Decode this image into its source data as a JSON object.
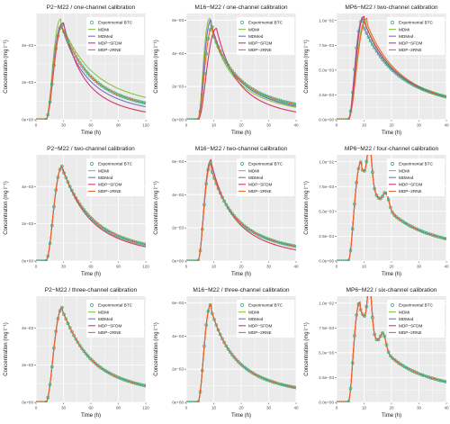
{
  "figure": {
    "panel_background": "#ebebeb",
    "grid_color": "#ffffff",
    "series_styles": [
      {
        "name": "Experimental BTC",
        "color": "#3aa67a",
        "kind": "points"
      },
      {
        "name": "MDMi",
        "color": "#8cc63f",
        "kind": "line"
      },
      {
        "name": "MDMed",
        "color": "#7b6fc4",
        "kind": "line"
      },
      {
        "name": "MDP−SFDM",
        "color": "#d6336c",
        "kind": "line"
      },
      {
        "name": "MDP−2RNE",
        "color": "#f26522",
        "kind": "line"
      }
    ]
  },
  "chart_data": [
    {
      "type": "line",
      "title": "P2−M22 / one-channel calibration",
      "xlabel": "Time (h)",
      "ylabel": "Concentration (mg l⁻¹)",
      "xlim": [
        0,
        120
      ],
      "ylim": [
        0,
        0.0057
      ],
      "xticks": [
        0,
        30,
        60,
        90,
        120
      ],
      "yticks": [
        0,
        0.002,
        0.004
      ],
      "ytick_labels": [
        "0e+00",
        "2e−03",
        "4e−03"
      ],
      "legend": "top-right",
      "curves": [
        {
          "peak": 0.0051,
          "t0": 10,
          "tp": 29,
          "tail": 0.0002,
          "sh": 0.045,
          "sh2": 0.6
        },
        {
          "peak": 0.0054,
          "t0": 10,
          "tp": 27,
          "tail": 0.0003,
          "sh": 0.04,
          "sh2": 0.55
        },
        {
          "peak": 0.0051,
          "t0": 10,
          "tp": 28,
          "tail": 0.0001,
          "sh": 0.05,
          "sh2": 0.6
        },
        {
          "peak": 0.0052,
          "t0": 10,
          "tp": 30,
          "tail": 0.0,
          "sh": 0.06,
          "sh2": 0.65
        },
        {
          "peak": 0.0051,
          "t0": 10,
          "tp": 29,
          "tail": 0.0002,
          "sh": 0.045,
          "sh2": 0.6
        }
      ]
    },
    {
      "type": "line",
      "title": "M16−M22 / one-channel calibration",
      "xlabel": "Time (h)",
      "ylabel": "Concentration (mg l⁻¹)",
      "xlim": [
        0,
        40
      ],
      "ylim": [
        0,
        0.0064
      ],
      "xticks": [
        0,
        10,
        20,
        30,
        40
      ],
      "yticks": [
        0,
        0.002,
        0.004,
        0.006
      ],
      "ytick_labels": [
        "0e+00",
        "2e−03",
        "4e−03",
        "6e−03"
      ],
      "legend": "top-right",
      "curves": [
        {
          "peak": 0.0056,
          "t0": 4,
          "tp": 9.5,
          "tail": 0.0003,
          "sh": 0.15,
          "sh2": 0.6
        },
        {
          "peak": 0.0061,
          "t0": 4,
          "tp": 8.5,
          "tail": 0.0002,
          "sh": 0.17,
          "sh2": 0.6
        },
        {
          "peak": 0.006,
          "t0": 4,
          "tp": 9.0,
          "tail": 0.0002,
          "sh": 0.16,
          "sh2": 0.6
        },
        {
          "peak": 0.0055,
          "t0": 4,
          "tp": 11.0,
          "tail": 0.0,
          "sh": 0.18,
          "sh2": 0.65
        },
        {
          "peak": 0.0056,
          "t0": 4,
          "tp": 9.5,
          "tail": 0.0003,
          "sh": 0.15,
          "sh2": 0.6
        }
      ]
    },
    {
      "type": "line",
      "title": "MP6−M22 / two-channel calibration",
      "xlabel": "Time (h)",
      "ylabel": "Concentration (mg l⁻¹)",
      "xlim": [
        0,
        40
      ],
      "ylim": [
        0,
        0.0107
      ],
      "xticks": [
        0,
        10,
        20,
        30,
        40
      ],
      "yticks": [
        0,
        0.0025,
        0.005,
        0.0075,
        0.01
      ],
      "ytick_labels": [
        "0.0e+00",
        "2.5e−03",
        "5.0e−03",
        "7.5e−03",
        "1.0e−02"
      ],
      "legend": "top-right",
      "curves": [
        {
          "peak": 0.0102,
          "t0": 4,
          "tp": 9.5,
          "tail": 0.0006,
          "sh": 0.12,
          "sh2": 0.55
        },
        {
          "peak": 0.01,
          "t0": 4,
          "tp": 10.5,
          "tail": 0.0004,
          "sh": 0.12,
          "sh2": 0.55
        },
        {
          "peak": 0.0102,
          "t0": 4,
          "tp": 9.5,
          "tail": 0.0006,
          "sh": 0.12,
          "sh2": 0.55
        },
        {
          "peak": 0.0104,
          "t0": 4,
          "tp": 10.0,
          "tail": 0.0005,
          "sh": 0.12,
          "sh2": 0.55
        },
        {
          "peak": 0.0102,
          "t0": 4,
          "tp": 11.0,
          "tail": 0.0005,
          "sh": 0.12,
          "sh2": 0.55
        }
      ]
    },
    {
      "type": "line",
      "title": "P2−M22 / two-channel calibration",
      "xlabel": "Time (h)",
      "ylabel": "Concentration (mg l⁻¹)",
      "xlim": [
        0,
        120
      ],
      "ylim": [
        0,
        0.0057
      ],
      "xticks": [
        0,
        30,
        60,
        90,
        120
      ],
      "yticks": [
        0,
        0.002,
        0.004
      ],
      "ytick_labels": [
        "0e+00",
        "2e−03",
        "4e−03"
      ],
      "legend": "top-right",
      "curves": [
        {
          "peak": 0.0051,
          "t0": 10,
          "tp": 29,
          "tail": 0.0002,
          "sh": 0.045,
          "sh2": 0.6
        },
        {
          "peak": 0.0051,
          "t0": 10,
          "tp": 29,
          "tail": 0.0002,
          "sh": 0.045,
          "sh2": 0.6
        },
        {
          "peak": 0.0051,
          "t0": 10,
          "tp": 29,
          "tail": 0.0002,
          "sh": 0.045,
          "sh2": 0.6
        },
        {
          "peak": 0.0051,
          "t0": 10,
          "tp": 29,
          "tail": 0.0001,
          "sh": 0.047,
          "sh2": 0.6
        },
        {
          "peak": 0.0051,
          "t0": 10,
          "tp": 29,
          "tail": 0.0002,
          "sh": 0.045,
          "sh2": 0.6
        }
      ]
    },
    {
      "type": "line",
      "title": "M16−M22 / two-channel calibration",
      "xlabel": "Time (h)",
      "ylabel": "Concentration (mg l⁻¹)",
      "xlim": [
        0,
        40
      ],
      "ylim": [
        0,
        0.0064
      ],
      "xticks": [
        0,
        10,
        20,
        30,
        40
      ],
      "yticks": [
        0,
        0.002,
        0.004,
        0.006
      ],
      "ytick_labels": [
        "0e+00",
        "2e−03",
        "4e−03",
        "6e−03"
      ],
      "legend": "top-right",
      "curves": [
        {
          "peak": 0.0059,
          "t0": 4,
          "tp": 9.0,
          "tail": 0.0003,
          "sh": 0.16,
          "sh2": 0.6
        },
        {
          "peak": 0.0059,
          "t0": 4,
          "tp": 9.0,
          "tail": 0.0003,
          "sh": 0.16,
          "sh2": 0.6
        },
        {
          "peak": 0.0059,
          "t0": 4,
          "tp": 9.0,
          "tail": 0.0003,
          "sh": 0.16,
          "sh2": 0.6
        },
        {
          "peak": 0.0061,
          "t0": 4,
          "tp": 9.0,
          "tail": 0.0001,
          "sh": 0.17,
          "sh2": 0.6
        },
        {
          "peak": 0.0059,
          "t0": 4,
          "tp": 9.0,
          "tail": 0.0003,
          "sh": 0.16,
          "sh2": 0.6
        }
      ]
    },
    {
      "type": "line",
      "title": "MP6−M22 / four-channel calibration",
      "xlabel": "Time (h)",
      "ylabel": "Concentration (mg l⁻¹)",
      "xlim": [
        0,
        40
      ],
      "ylim": [
        0,
        0.0107
      ],
      "xticks": [
        0,
        10,
        20,
        30,
        40
      ],
      "yticks": [
        0,
        0.0025,
        0.005,
        0.0075,
        0.01
      ],
      "ytick_labels": [
        "0.0e+00",
        "2.5e−03",
        "5.0e−03",
        "7.5e−03",
        "1.0e−02"
      ],
      "legend": "top-right",
      "curves": [
        {
          "peak": 0.01,
          "t0": 4,
          "tp": 9.0,
          "tail": 0.0006,
          "sh": 0.12,
          "sh2": 0.55,
          "bump": [
            0.004,
            12,
            1.2
          ],
          "bump2": [
            0.0015,
            18,
            1.5
          ]
        },
        {
          "peak": 0.01,
          "t0": 4,
          "tp": 9.0,
          "tail": 0.0006,
          "sh": 0.12,
          "sh2": 0.55,
          "bump": [
            0.004,
            12,
            1.2
          ],
          "bump2": [
            0.0015,
            18,
            1.5
          ]
        },
        {
          "peak": 0.01,
          "t0": 4,
          "tp": 9.0,
          "tail": 0.0006,
          "sh": 0.12,
          "sh2": 0.55,
          "bump": [
            0.004,
            12,
            1.2
          ],
          "bump2": [
            0.0015,
            18,
            1.5
          ]
        },
        {
          "peak": 0.01,
          "t0": 4,
          "tp": 9.0,
          "tail": 0.0006,
          "sh": 0.12,
          "sh2": 0.55,
          "bump": [
            0.004,
            12,
            1.2
          ],
          "bump2": [
            0.0015,
            18,
            1.5
          ]
        },
        {
          "peak": 0.01,
          "t0": 4,
          "tp": 9.0,
          "tail": 0.0006,
          "sh": 0.12,
          "sh2": 0.55,
          "bump": [
            0.004,
            12,
            1.2
          ],
          "bump2": [
            0.0015,
            18,
            1.5
          ]
        }
      ]
    },
    {
      "type": "line",
      "title": "P2−M22 / three-channel calibration",
      "xlabel": "Time (h)",
      "ylabel": "Concentration (mg l⁻¹)",
      "xlim": [
        0,
        120
      ],
      "ylim": [
        0,
        0.0057
      ],
      "xticks": [
        0,
        30,
        60,
        90,
        120
      ],
      "yticks": [
        0,
        0.002,
        0.004
      ],
      "ytick_labels": [
        "0e+00",
        "2e−03",
        "4e−03"
      ],
      "legend": "top-right",
      "curves": [
        {
          "peak": 0.0051,
          "t0": 10,
          "tp": 29,
          "tail": 0.0002,
          "sh": 0.045,
          "sh2": 0.6
        },
        {
          "peak": 0.0051,
          "t0": 10,
          "tp": 29,
          "tail": 0.0002,
          "sh": 0.045,
          "sh2": 0.6
        },
        {
          "peak": 0.0051,
          "t0": 10,
          "tp": 29,
          "tail": 0.0002,
          "sh": 0.045,
          "sh2": 0.6
        },
        {
          "peak": 0.0051,
          "t0": 10,
          "tp": 29,
          "tail": 0.0002,
          "sh": 0.045,
          "sh2": 0.6
        },
        {
          "peak": 0.0051,
          "t0": 10,
          "tp": 29,
          "tail": 0.0002,
          "sh": 0.045,
          "sh2": 0.6
        }
      ]
    },
    {
      "type": "line",
      "title": "M16−M22 / three-channel calibration",
      "xlabel": "Time (h)",
      "ylabel": "Concentration (mg l⁻¹)",
      "xlim": [
        0,
        40
      ],
      "ylim": [
        0,
        0.0064
      ],
      "xticks": [
        0,
        10,
        20,
        30,
        40
      ],
      "yticks": [
        0,
        0.002,
        0.004,
        0.006
      ],
      "ytick_labels": [
        "0e+00",
        "2e−03",
        "4e−03",
        "6e−03"
      ],
      "legend": "top-right",
      "curves": [
        {
          "peak": 0.0059,
          "t0": 4,
          "tp": 9.0,
          "tail": 0.0003,
          "sh": 0.16,
          "sh2": 0.6
        },
        {
          "peak": 0.0059,
          "t0": 4,
          "tp": 9.0,
          "tail": 0.0003,
          "sh": 0.16,
          "sh2": 0.6
        },
        {
          "peak": 0.0059,
          "t0": 4,
          "tp": 9.0,
          "tail": 0.0003,
          "sh": 0.16,
          "sh2": 0.6
        },
        {
          "peak": 0.0059,
          "t0": 4,
          "tp": 9.0,
          "tail": 0.0003,
          "sh": 0.16,
          "sh2": 0.6
        },
        {
          "peak": 0.0059,
          "t0": 4,
          "tp": 9.0,
          "tail": 0.0003,
          "sh": 0.16,
          "sh2": 0.6
        }
      ]
    },
    {
      "type": "line",
      "title": "MP6−M22 / six-channel calibration",
      "xlabel": "Time (h)",
      "ylabel": "Concentration (mg l⁻¹)",
      "xlim": [
        0,
        40
      ],
      "ylim": [
        0,
        0.0107
      ],
      "xticks": [
        0,
        10,
        20,
        30,
        40
      ],
      "yticks": [
        0,
        0.0025,
        0.005,
        0.0075,
        0.01
      ],
      "ytick_labels": [
        "0.0e+00",
        "2.5e−03",
        "5.0e−03",
        "7.5e−03",
        "1.0e−02"
      ],
      "legend": "top-right",
      "curves": [
        {
          "peak": 0.0101,
          "t0": 4,
          "tp": 8.5,
          "tail": 0.0006,
          "sh": 0.13,
          "sh2": 0.55,
          "bump": [
            0.0045,
            12,
            1.1
          ],
          "bump2": [
            0.0016,
            17,
            1.4
          ]
        },
        {
          "peak": 0.0101,
          "t0": 4,
          "tp": 8.5,
          "tail": 0.0006,
          "sh": 0.13,
          "sh2": 0.55,
          "bump": [
            0.0045,
            12,
            1.1
          ],
          "bump2": [
            0.0016,
            17,
            1.4
          ]
        },
        {
          "peak": 0.0101,
          "t0": 4,
          "tp": 8.5,
          "tail": 0.0006,
          "sh": 0.13,
          "sh2": 0.55,
          "bump": [
            0.0045,
            12,
            1.1
          ],
          "bump2": [
            0.0016,
            17,
            1.4
          ]
        },
        {
          "peak": 0.0101,
          "t0": 4,
          "tp": 8.5,
          "tail": 0.0006,
          "sh": 0.13,
          "sh2": 0.55,
          "bump": [
            0.0045,
            12,
            1.1
          ],
          "bump2": [
            0.0016,
            17,
            1.4
          ]
        },
        {
          "peak": 0.0101,
          "t0": 4,
          "tp": 8.5,
          "tail": 0.0006,
          "sh": 0.13,
          "sh2": 0.55,
          "bump": [
            0.0045,
            12,
            1.1
          ],
          "bump2": [
            0.0016,
            17,
            1.4
          ]
        }
      ]
    }
  ]
}
